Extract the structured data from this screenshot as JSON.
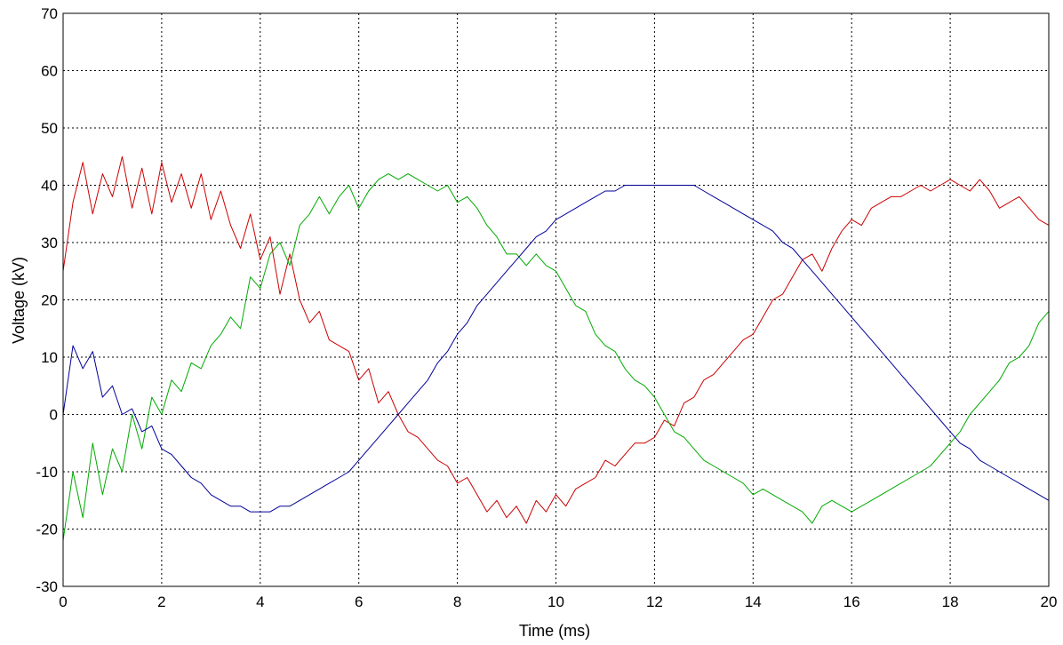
{
  "chart_data": {
    "type": "line",
    "title": "",
    "xlabel": "Time (ms)",
    "ylabel": "Voltage (kV)",
    "xlim": [
      0,
      20
    ],
    "ylim": [
      -30,
      70
    ],
    "xticks": [
      0,
      2,
      4,
      6,
      8,
      10,
      12,
      14,
      16,
      18,
      20
    ],
    "yticks": [
      -30,
      -20,
      -10,
      0,
      10,
      20,
      30,
      40,
      50,
      60,
      70
    ],
    "xtick_labels": [
      "0",
      "2",
      "4",
      "6",
      "8",
      "10",
      "12",
      "14",
      "16",
      "18",
      "20"
    ],
    "ytick_labels": [
      "-30",
      "-20",
      "-10",
      "0",
      "10",
      "20",
      "30",
      "40",
      "50",
      "60",
      "70"
    ],
    "grid": true,
    "colors": {
      "red": "#cc0000",
      "green": "#00aa00",
      "blue": "#000099"
    },
    "series": [
      {
        "color": "#cc0000",
        "x": [
          0,
          0.2,
          0.4,
          0.6,
          0.8,
          1.0,
          1.2,
          1.4,
          1.6,
          1.8,
          2.0,
          2.2,
          2.4,
          2.6,
          2.8,
          3.0,
          3.2,
          3.4,
          3.6,
          3.8,
          4.0,
          4.2,
          4.4,
          4.6,
          4.8,
          5.0,
          5.2,
          5.4,
          5.6,
          5.8,
          6.0,
          6.2,
          6.4,
          6.6,
          6.8,
          7.0,
          7.2,
          7.4,
          7.6,
          7.8,
          8.0,
          8.2,
          8.4,
          8.6,
          8.8,
          9.0,
          9.2,
          9.4,
          9.6,
          9.8,
          10.0,
          10.2,
          10.4,
          10.6,
          10.8,
          11.0,
          11.2,
          11.4,
          11.6,
          11.8,
          12.0,
          12.2,
          12.4,
          12.6,
          12.8,
          13.0,
          13.2,
          13.4,
          13.6,
          13.8,
          14.0,
          14.2,
          14.4,
          14.6,
          14.8,
          15.0,
          15.2,
          15.4,
          15.6,
          15.8,
          16.0,
          16.2,
          16.4,
          16.6,
          16.8,
          17.0,
          17.2,
          17.4,
          17.6,
          17.8,
          18.0,
          18.2,
          18.4,
          18.6,
          18.8,
          19.0,
          19.2,
          19.4,
          19.6,
          19.8,
          20.0
        ],
        "y": [
          25,
          37,
          44,
          35,
          42,
          38,
          45,
          36,
          43,
          35,
          44,
          37,
          42,
          36,
          42,
          34,
          39,
          33,
          29,
          35,
          27,
          31,
          21,
          28,
          20,
          16,
          18,
          13,
          12,
          11,
          6,
          8,
          2,
          4,
          0,
          -3,
          -4,
          -6,
          -8,
          -9,
          -12,
          -11,
          -14,
          -17,
          -15,
          -18,
          -16,
          -19,
          -15,
          -17,
          -14,
          -16,
          -13,
          -12,
          -11,
          -8,
          -9,
          -7,
          -5,
          -5,
          -4,
          -1,
          -2,
          2,
          3,
          6,
          7,
          9,
          11,
          13,
          14,
          17,
          20,
          21,
          24,
          27,
          28,
          25,
          29,
          32,
          34,
          33,
          36,
          37,
          38,
          38,
          39,
          40,
          39,
          40,
          41,
          40,
          39,
          41,
          39,
          36,
          37,
          38,
          36,
          34,
          33
        ]
      },
      {
        "color": "#00aa00",
        "x": [
          0,
          0.2,
          0.4,
          0.6,
          0.8,
          1.0,
          1.2,
          1.4,
          1.6,
          1.8,
          2.0,
          2.2,
          2.4,
          2.6,
          2.8,
          3.0,
          3.2,
          3.4,
          3.6,
          3.8,
          4.0,
          4.2,
          4.4,
          4.6,
          4.8,
          5.0,
          5.2,
          5.4,
          5.6,
          5.8,
          6.0,
          6.2,
          6.4,
          6.6,
          6.8,
          7.0,
          7.2,
          7.4,
          7.6,
          7.8,
          8.0,
          8.2,
          8.4,
          8.6,
          8.8,
          9.0,
          9.2,
          9.4,
          9.6,
          9.8,
          10.0,
          10.2,
          10.4,
          10.6,
          10.8,
          11.0,
          11.2,
          11.4,
          11.6,
          11.8,
          12.0,
          12.2,
          12.4,
          12.6,
          12.8,
          13.0,
          13.2,
          13.4,
          13.6,
          13.8,
          14.0,
          14.2,
          14.4,
          14.6,
          14.8,
          15.0,
          15.2,
          15.4,
          15.6,
          15.8,
          16.0,
          16.2,
          16.4,
          16.6,
          16.8,
          17.0,
          17.2,
          17.4,
          17.6,
          17.8,
          18.0,
          18.2,
          18.4,
          18.6,
          18.8,
          19.0,
          19.2,
          19.4,
          19.6,
          19.8,
          20.0
        ],
        "y": [
          -22,
          -10,
          -18,
          -5,
          -14,
          -6,
          -10,
          0,
          -6,
          3,
          0,
          6,
          4,
          9,
          8,
          12,
          14,
          17,
          15,
          24,
          22,
          28,
          30,
          26,
          33,
          35,
          38,
          35,
          38,
          40,
          36,
          39,
          41,
          42,
          41,
          42,
          41,
          40,
          39,
          40,
          37,
          38,
          36,
          33,
          31,
          28,
          28,
          26,
          28,
          26,
          25,
          22,
          19,
          18,
          14,
          12,
          11,
          8,
          6,
          5,
          3,
          0,
          -3,
          -4,
          -6,
          -8,
          -9,
          -10,
          -11,
          -12,
          -14,
          -13,
          -14,
          -15,
          -16,
          -17,
          -19,
          -16,
          -15,
          -16,
          -17,
          -16,
          -15,
          -14,
          -13,
          -12,
          -11,
          -10,
          -9,
          -7,
          -5,
          -3,
          0,
          2,
          4,
          6,
          9,
          10,
          12,
          16,
          18
        ]
      },
      {
        "color": "#000099",
        "x": [
          0,
          0.2,
          0.4,
          0.6,
          0.8,
          1.0,
          1.2,
          1.4,
          1.6,
          1.8,
          2.0,
          2.2,
          2.4,
          2.6,
          2.8,
          3.0,
          3.2,
          3.4,
          3.6,
          3.8,
          4.0,
          4.2,
          4.4,
          4.6,
          4.8,
          5.0,
          5.2,
          5.4,
          5.6,
          5.8,
          6.0,
          6.2,
          6.4,
          6.6,
          6.8,
          7.0,
          7.2,
          7.4,
          7.6,
          7.8,
          8.0,
          8.2,
          8.4,
          8.6,
          8.8,
          9.0,
          9.2,
          9.4,
          9.6,
          9.8,
          10.0,
          10.2,
          10.4,
          10.6,
          10.8,
          11.0,
          11.2,
          11.4,
          11.6,
          11.8,
          12.0,
          12.2,
          12.4,
          12.6,
          12.8,
          13.0,
          13.2,
          13.4,
          13.6,
          13.8,
          14.0,
          14.2,
          14.4,
          14.6,
          14.8,
          15.0,
          15.2,
          15.4,
          15.6,
          15.8,
          16.0,
          16.2,
          16.4,
          16.6,
          16.8,
          17.0,
          17.2,
          17.4,
          17.6,
          17.8,
          18.0,
          18.2,
          18.4,
          18.6,
          18.8,
          19.0,
          19.2,
          19.4,
          19.6,
          19.8,
          20.0
        ],
        "y": [
          0,
          12,
          8,
          11,
          3,
          5,
          0,
          1,
          -3,
          -2,
          -6,
          -7,
          -9,
          -11,
          -12,
          -14,
          -15,
          -16,
          -16,
          -17,
          -17,
          -17,
          -16,
          -16,
          -15,
          -14,
          -13,
          -12,
          -11,
          -10,
          -8,
          -6,
          -4,
          -2,
          0,
          2,
          4,
          6,
          9,
          11,
          14,
          16,
          19,
          21,
          23,
          25,
          27,
          29,
          31,
          32,
          34,
          35,
          36,
          37,
          38,
          39,
          39,
          40,
          40,
          40,
          40,
          40,
          40,
          40,
          40,
          39,
          38,
          37,
          36,
          35,
          34,
          33,
          32,
          30,
          29,
          27,
          25,
          23,
          21,
          19,
          17,
          15,
          13,
          11,
          9,
          7,
          5,
          3,
          1,
          -1,
          -3,
          -5,
          -6,
          -8,
          -9,
          -10,
          -11,
          -12,
          -13,
          -14,
          -15
        ]
      }
    ]
  }
}
